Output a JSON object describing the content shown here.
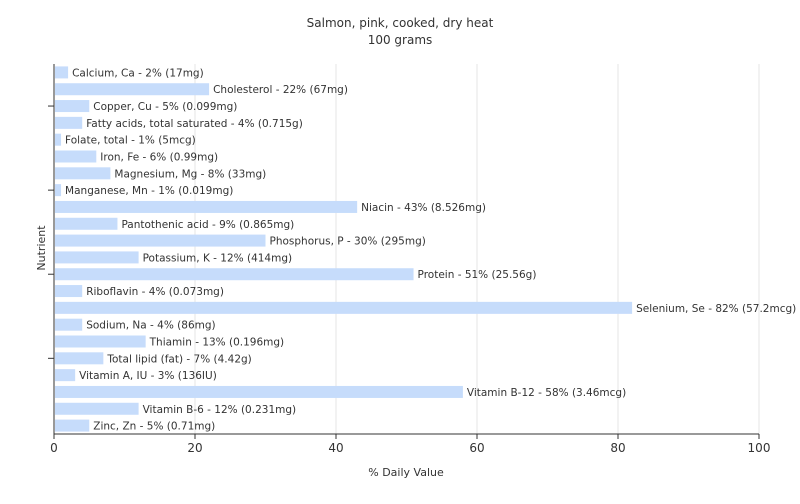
{
  "chart_data": {
    "type": "bar",
    "orientation": "horizontal",
    "title": "Salmon, pink, cooked, dry heat",
    "subtitle": "100 grams",
    "xlabel": "% Daily Value",
    "ylabel": "Nutrient",
    "xlim": [
      0,
      100
    ],
    "xticks": [
      0,
      20,
      40,
      60,
      80,
      100
    ],
    "grid": true,
    "bar_color": "#c6dcfb",
    "grid_color": "#e4e4e4",
    "categories": [
      "Calcium, Ca",
      "Cholesterol",
      "Copper, Cu",
      "Fatty acids, total saturated",
      "Folate, total",
      "Iron, Fe",
      "Magnesium, Mg",
      "Manganese, Mn",
      "Niacin",
      "Pantothenic acid",
      "Phosphorus, P",
      "Potassium, K",
      "Protein",
      "Riboflavin",
      "Selenium, Se",
      "Sodium, Na",
      "Thiamin",
      "Total lipid (fat)",
      "Vitamin A, IU",
      "Vitamin B-12",
      "Vitamin B-6",
      "Zinc, Zn"
    ],
    "values": [
      2,
      22,
      5,
      4,
      1,
      6,
      8,
      1,
      43,
      9,
      30,
      12,
      51,
      4,
      82,
      4,
      13,
      7,
      3,
      58,
      12,
      5
    ],
    "data_labels": [
      "Calcium, Ca - 2% (17mg)",
      "Cholesterol - 22% (67mg)",
      "Copper, Cu - 5% (0.099mg)",
      "Fatty acids, total saturated - 4% (0.715g)",
      "Folate, total - 1% (5mcg)",
      "Iron, Fe - 6% (0.99mg)",
      "Magnesium, Mg - 8% (33mg)",
      "Manganese, Mn - 1% (0.019mg)",
      "Niacin - 43% (8.526mg)",
      "Pantothenic acid - 9% (0.865mg)",
      "Phosphorus, P - 30% (295mg)",
      "Potassium, K - 12% (414mg)",
      "Protein - 51% (25.56g)",
      "Riboflavin - 4% (0.073mg)",
      "Selenium, Se - 82% (57.2mcg)",
      "Sodium, Na - 4% (86mg)",
      "Thiamin - 13% (0.196mg)",
      "Total lipid (fat) - 7% (4.42g)",
      "Vitamin A, IU - 3% (136IU)",
      "Vitamin B-12 - 58% (3.46mcg)",
      "Vitamin B-6 - 12% (0.231mg)",
      "Zinc, Zn - 5% (0.71mg)"
    ]
  }
}
